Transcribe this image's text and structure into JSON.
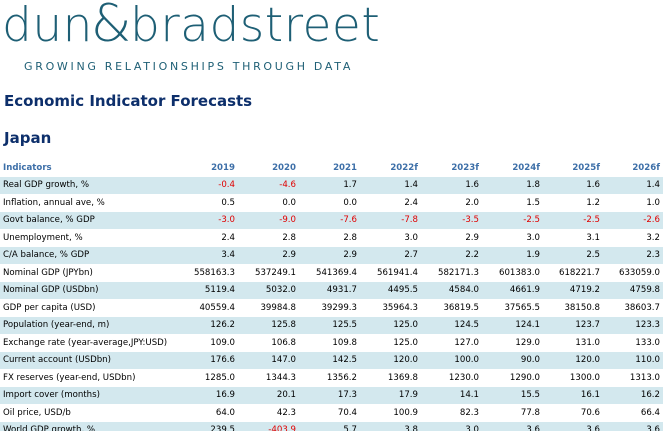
{
  "brand": {
    "logo_left": "dun",
    "logo_amp": "&",
    "logo_right": "bradstreet",
    "tagline": "GROWING RELATIONSHIPS THROUGH DATA",
    "color": "#1e5f75"
  },
  "page_title": "Economic Indicator Forecasts",
  "country": "Japan",
  "colors": {
    "header_text": "#3d6fa8",
    "title": "#0d2f6b",
    "row_shade": "#d3e8ee",
    "negative": "#e00000"
  },
  "table": {
    "header_label": "Indicators",
    "years": [
      "2019",
      "2020",
      "2021",
      "2022f",
      "2023f",
      "2024f",
      "2025f",
      "2026f"
    ],
    "rows": [
      {
        "label": "Real GDP growth, %",
        "values": [
          "-0.4",
          "-4.6",
          "1.7",
          "1.4",
          "1.6",
          "1.8",
          "1.6",
          "1.4"
        ]
      },
      {
        "label": "Inflation, annual ave, %",
        "values": [
          "0.5",
          "0.0",
          "0.0",
          "2.4",
          "2.0",
          "1.5",
          "1.2",
          "1.0"
        ]
      },
      {
        "label": "Govt balance, % GDP",
        "values": [
          "-3.0",
          "-9.0",
          "-7.6",
          "-7.8",
          "-3.5",
          "-2.5",
          "-2.5",
          "-2.6"
        ]
      },
      {
        "label": "Unemployment, %",
        "values": [
          "2.4",
          "2.8",
          "2.8",
          "3.0",
          "2.9",
          "3.0",
          "3.1",
          "3.2"
        ]
      },
      {
        "label": "C/A balance, % GDP",
        "values": [
          "3.4",
          "2.9",
          "2.9",
          "2.7",
          "2.2",
          "1.9",
          "2.5",
          "2.3"
        ]
      },
      {
        "label": "Nominal GDP (JPYbn)",
        "values": [
          "558163.3",
          "537249.1",
          "541369.4",
          "561941.4",
          "582171.3",
          "601383.0",
          "618221.7",
          "633059.0"
        ]
      },
      {
        "label": "Nominal GDP (USDbn)",
        "values": [
          "5119.4",
          "5032.0",
          "4931.7",
          "4495.5",
          "4584.0",
          "4661.9",
          "4719.2",
          "4759.8"
        ]
      },
      {
        "label": "GDP per capita (USD)",
        "values": [
          "40559.4",
          "39984.8",
          "39299.3",
          "35964.3",
          "36819.5",
          "37565.5",
          "38150.8",
          "38603.7"
        ]
      },
      {
        "label": "Population (year-end, m)",
        "values": [
          "126.2",
          "125.8",
          "125.5",
          "125.0",
          "124.5",
          "124.1",
          "123.7",
          "123.3"
        ]
      },
      {
        "label": "Exchange rate (year-average,JPY:USD)",
        "values": [
          "109.0",
          "106.8",
          "109.8",
          "125.0",
          "127.0",
          "129.0",
          "131.0",
          "133.0"
        ]
      },
      {
        "label": "Current account (USDbn)",
        "values": [
          "176.6",
          "147.0",
          "142.5",
          "120.0",
          "100.0",
          "90.0",
          "120.0",
          "110.0"
        ]
      },
      {
        "label": "FX reserves (year-end, USDbn)",
        "values": [
          "1285.0",
          "1344.3",
          "1356.2",
          "1369.8",
          "1230.0",
          "1290.0",
          "1300.0",
          "1313.0"
        ]
      },
      {
        "label": "Import cover (months)",
        "values": [
          "16.9",
          "20.1",
          "17.3",
          "17.9",
          "14.1",
          "15.5",
          "16.1",
          "16.2"
        ]
      },
      {
        "label": "Oil price, USD/b",
        "values": [
          "64.0",
          "42.3",
          "70.4",
          "100.9",
          "82.3",
          "77.8",
          "70.6",
          "66.4"
        ]
      },
      {
        "label": "World GDP growth, %",
        "values": [
          "239.5",
          "-403.9",
          "5.7",
          "3.8",
          "3.0",
          "3.6",
          "3.6",
          "3.6"
        ]
      }
    ]
  }
}
